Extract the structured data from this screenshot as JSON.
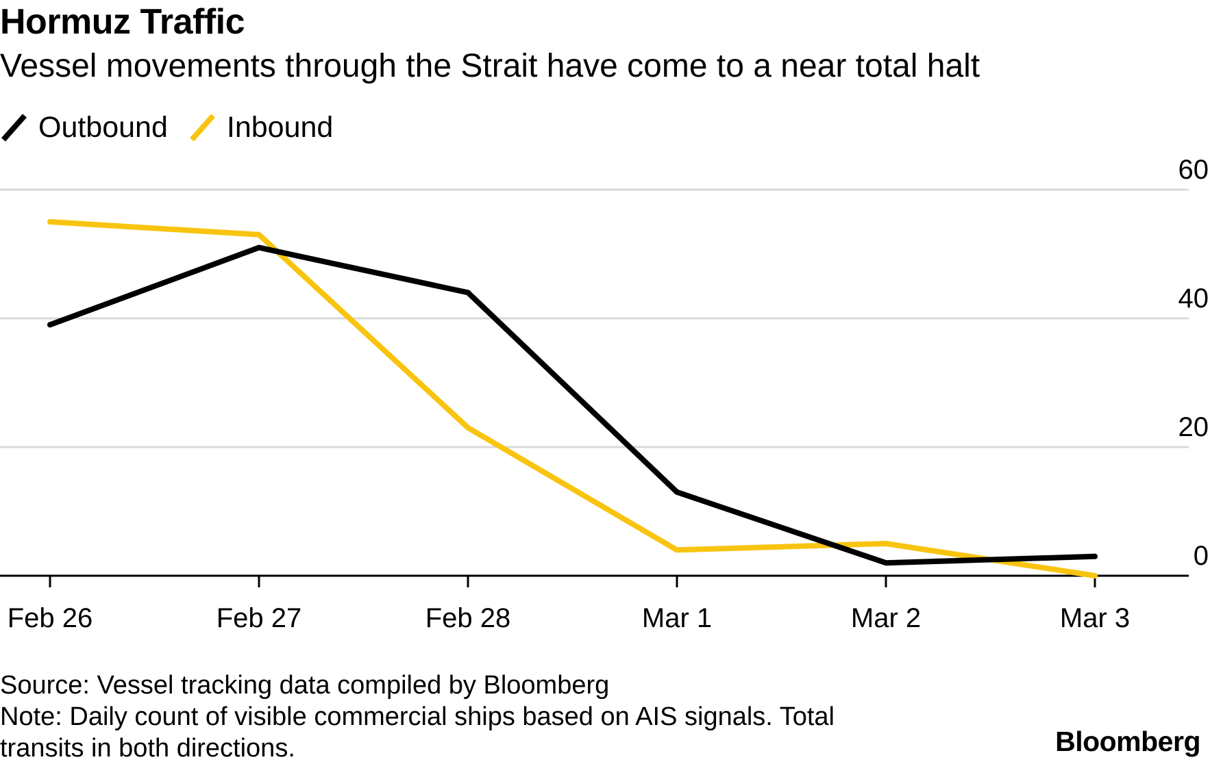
{
  "chart_data": {
    "type": "line",
    "title": "Hormuz Traffic",
    "subtitle": "Vessel movements through the Strait have come to a near total halt",
    "categories": [
      "Feb 26",
      "Feb 27",
      "Feb 28",
      "Mar 1",
      "Mar 2",
      "Mar 3"
    ],
    "series": [
      {
        "name": "Outbound",
        "color": "#000000",
        "values": [
          39,
          51,
          44,
          13,
          2,
          3
        ]
      },
      {
        "name": "Inbound",
        "color": "#f8c410",
        "values": [
          55,
          53,
          23,
          4,
          5,
          0
        ]
      }
    ],
    "yticks": [
      0,
      20,
      40,
      60
    ],
    "ylim": [
      0,
      60
    ],
    "xlabel": "",
    "ylabel": "",
    "grid": true,
    "legend_position": "top-left"
  },
  "footer": {
    "source": "Source: Vessel tracking data compiled by Bloomberg",
    "note": "Note: Daily count of visible commercial ships based on AIS signals. Total transits in both directions."
  },
  "brand": "Bloomberg"
}
